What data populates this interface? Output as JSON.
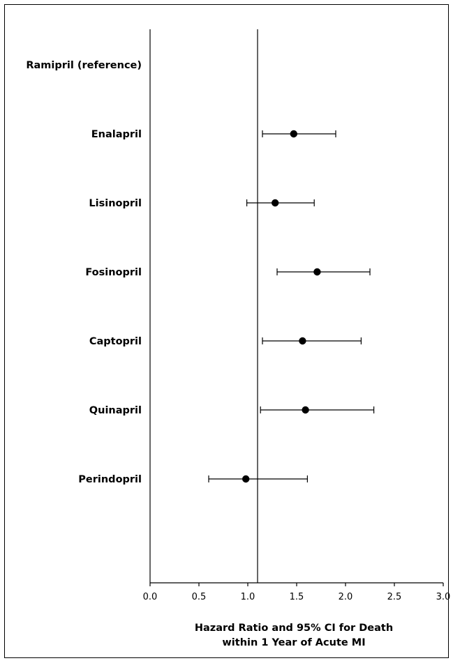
{
  "chart_data": {
    "type": "scatter",
    "subtype": "forest-plot",
    "xlabel": [
      "Hazard Ratio and 95% CI for Death",
      "within 1 Year of Acute MI"
    ],
    "xlim": [
      0.0,
      3.0
    ],
    "xticks": [
      "0.0",
      "0.5",
      "1.0",
      "1.5",
      "2.0",
      "2.5",
      "3.0"
    ],
    "xtick_values": [
      0.0,
      0.5,
      1.0,
      1.5,
      2.0,
      2.5,
      3.0
    ],
    "reference_line_x": 1.1,
    "grid": false,
    "marker_color": "#000000",
    "categories": [
      "Ramipril (reference)",
      "Enalapril",
      "Lisinopril",
      "Fosinopril",
      "Captopril",
      "Quinapril",
      "Perindopril"
    ],
    "points": [
      {
        "label": "Ramipril (reference)",
        "hr": null,
        "lower": null,
        "upper": null
      },
      {
        "label": "Enalapril",
        "hr": 1.47,
        "lower": 1.15,
        "upper": 1.9
      },
      {
        "label": "Lisinopril",
        "hr": 1.28,
        "lower": 0.99,
        "upper": 1.68
      },
      {
        "label": "Fosinopril",
        "hr": 1.71,
        "lower": 1.3,
        "upper": 2.25
      },
      {
        "label": "Captopril",
        "hr": 1.56,
        "lower": 1.15,
        "upper": 2.16
      },
      {
        "label": "Quinapril",
        "hr": 1.59,
        "lower": 1.13,
        "upper": 2.29
      },
      {
        "label": "Perindopril",
        "hr": 0.98,
        "lower": 0.6,
        "upper": 1.61
      }
    ]
  }
}
